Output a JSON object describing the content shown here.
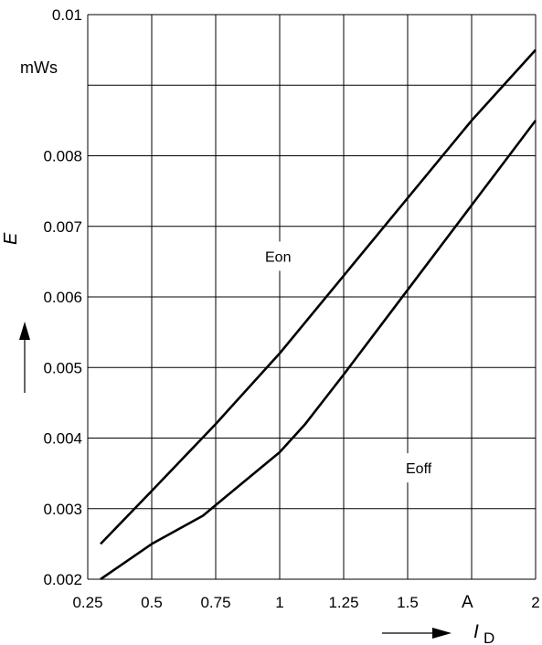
{
  "chart_data": {
    "type": "line",
    "title": "",
    "xlabel": "I",
    "xlabel_subscript": "D",
    "ylabel": "E",
    "x_unit_label": "A",
    "y_unit_label": "mWs",
    "xlim": [
      0.25,
      2
    ],
    "ylim": [
      0.002,
      0.01
    ],
    "x_ticks": [
      {
        "value": 0.25,
        "label": "0.25"
      },
      {
        "value": 0.5,
        "label": "0.5"
      },
      {
        "value": 0.75,
        "label": "0.75"
      },
      {
        "value": 1,
        "label": "1"
      },
      {
        "value": 1.25,
        "label": "1.25"
      },
      {
        "value": 1.5,
        "label": "1.5"
      },
      {
        "value": 2,
        "label": "2"
      }
    ],
    "y_ticks": [
      {
        "value": 0.002,
        "label": "0.002"
      },
      {
        "value": 0.003,
        "label": "0.003"
      },
      {
        "value": 0.004,
        "label": "0.004"
      },
      {
        "value": 0.005,
        "label": "0.005"
      },
      {
        "value": 0.006,
        "label": "0.006"
      },
      {
        "value": 0.007,
        "label": "0.007"
      },
      {
        "value": 0.008,
        "label": "0.008"
      },
      {
        "value": 0.01,
        "label": "0.01"
      }
    ],
    "x_grid": [
      0.25,
      0.5,
      0.75,
      1,
      1.25,
      1.5,
      1.75,
      2
    ],
    "y_grid": [
      0.002,
      0.003,
      0.004,
      0.005,
      0.006,
      0.007,
      0.008,
      0.009,
      0.01
    ],
    "grid": true,
    "series": [
      {
        "name": "Eon",
        "color": "#000000",
        "x": [
          0.3,
          0.5,
          0.75,
          1.0,
          1.25,
          1.5,
          1.75,
          2.0
        ],
        "values": [
          0.0025,
          0.00325,
          0.0042,
          0.0052,
          0.0063,
          0.0074,
          0.0085,
          0.0095
        ]
      },
      {
        "name": "Eoff",
        "color": "#000000",
        "x": [
          0.3,
          0.5,
          0.7,
          0.8,
          0.9,
          1.0,
          1.1,
          1.25,
          1.5,
          1.75,
          2.0
        ],
        "values": [
          0.002,
          0.0025,
          0.0029,
          0.0032,
          0.0035,
          0.0038,
          0.0042,
          0.0049,
          0.0061,
          0.0073,
          0.0085
        ]
      }
    ],
    "annotations": [
      {
        "text": "Eon",
        "x": 1.0,
        "y": 0.0065
      },
      {
        "text": "Eoff",
        "x": 1.55,
        "y": 0.0035
      }
    ]
  }
}
